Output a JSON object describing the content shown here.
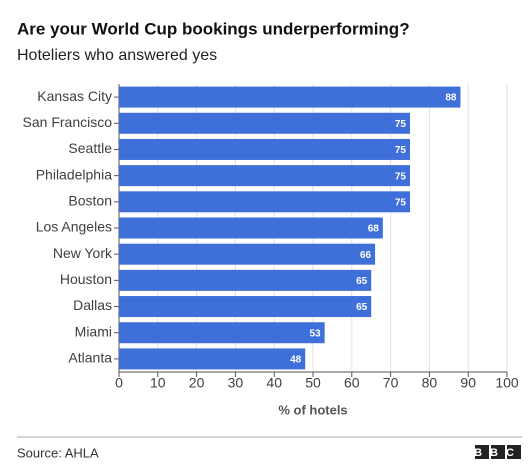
{
  "chart_data": {
    "type": "bar",
    "orientation": "horizontal",
    "title": "Are your World Cup bookings underperforming?",
    "subtitle": "Hoteliers who answered yes",
    "categories": [
      "Kansas City",
      "San Francisco",
      "Seattle",
      "Philadelphia",
      "Boston",
      "Los Angeles",
      "New York",
      "Houston",
      "Dallas",
      "Miami",
      "Atlanta"
    ],
    "values": [
      88,
      75,
      75,
      75,
      75,
      68,
      66,
      65,
      65,
      53,
      48
    ],
    "color": "#3f6fd8",
    "xlim": [
      0,
      100
    ],
    "xticks": [
      0,
      10,
      20,
      30,
      40,
      50,
      60,
      70,
      80,
      90,
      100
    ],
    "xlabel": "% of hotels",
    "grid": true,
    "source": "Source: AHLA",
    "logo": "BBC"
  }
}
